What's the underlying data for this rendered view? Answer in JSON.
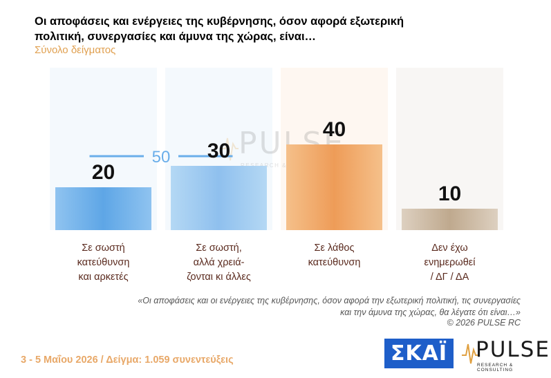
{
  "header": {
    "title": "Οι αποφάσεις και ενέργειες της κυβέρνησης, όσον αφορά εξωτερική πολιτική, συνεργασίες και άμυνα της χώρας, είναι…",
    "subtitle": "Σύνολο δείγματος"
  },
  "chart_data": {
    "type": "bar",
    "categories": [
      "Σε σωστή\nκατεύθυνση\nκαι αρκετές",
      "Σε σωστή,\nαλλά χρειά-\nζονται κι άλλες",
      "Σε λάθος\nκατεύθυνση",
      "Δεν έχω\nενημερωθεί\n/ ΔΓ / ΔΑ"
    ],
    "values": [
      20,
      30,
      40,
      10
    ],
    "group_total": {
      "label": "50",
      "covers": [
        0,
        1
      ]
    },
    "colors": [
      "#6aaeea",
      "#9ccaf0",
      "#f0a866",
      "#c8b6a0"
    ],
    "column_bg": [
      "#f4f9fd",
      "#f4f9fd",
      "#fef7f1",
      "#f8f6f4"
    ]
  },
  "watermark": {
    "word": "PULSE",
    "sub": "RESEARCH & CONSULTING"
  },
  "footer": {
    "question": "«Οι αποφάσεις και οι ενέργειες της κυβέρνησης, όσον αφορά την εξωτερική πολιτική, τις συνεργασίες και την άμυνα της χώρας, θα λέγατε ότι είναι…»",
    "copyright": "©  2026  PULSE RC",
    "fieldwork": "3 - 5  Μαΐου 2026  /  Δείγμα:  1.059 συνεντεύξεις",
    "logo_skai": "ΣΚΑΪ",
    "logo_pulse": "PULSE",
    "logo_pulse_sub": "RESEARCH & CONSULTING"
  }
}
